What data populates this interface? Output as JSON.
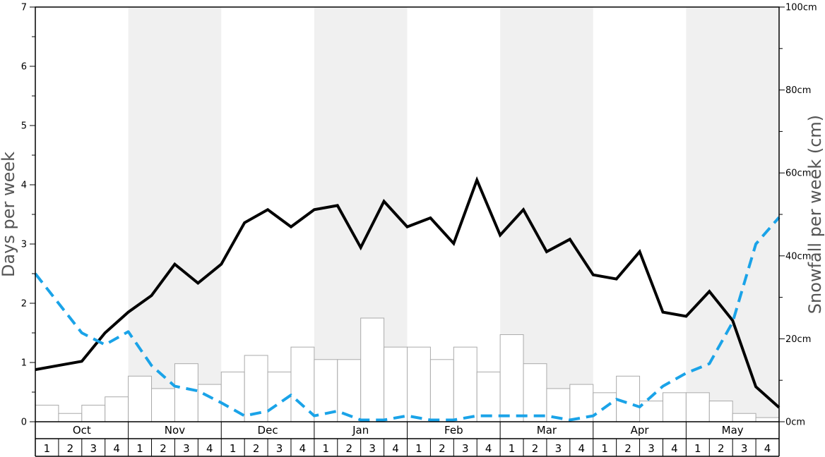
{
  "chart_data": {
    "type": "bar",
    "y_left": {
      "label": "Days per week",
      "lim": [
        0,
        7
      ],
      "ticks": [
        "0",
        "1",
        "2",
        "3",
        "4",
        "5",
        "6",
        "7"
      ]
    },
    "y_right": {
      "label": "Snowfall per week (cm)",
      "lim": [
        0,
        100
      ],
      "ticks": [
        "0cm",
        "20cm",
        "40cm",
        "60cm",
        "80cm",
        "100cm"
      ]
    },
    "months": [
      "Oct",
      "Nov",
      "Dec",
      "Jan",
      "Feb",
      "Mar",
      "Apr",
      "May"
    ],
    "weeks": [
      "1",
      "2",
      "3",
      "4"
    ],
    "shaded_months": [
      "Nov",
      "Jan",
      "Mar",
      "May"
    ],
    "series": [
      {
        "kind": "bars",
        "axis": "right",
        "color": "#aaaaaa",
        "values": [
          4,
          2,
          4,
          6,
          11,
          8,
          14,
          9,
          12,
          16,
          12,
          18,
          15,
          15,
          25,
          18,
          18,
          15,
          18,
          12,
          21,
          14,
          8,
          9,
          7,
          11,
          5,
          7,
          7,
          5,
          2,
          1
        ]
      },
      {
        "kind": "solid-line",
        "axis": "left",
        "color": "#000000",
        "values": [
          0.88,
          0.95,
          1.02,
          1.5,
          1.85,
          2.13,
          2.66,
          2.34,
          2.66,
          3.36,
          3.58,
          3.29,
          3.58,
          3.65,
          2.94,
          3.72,
          3.29,
          3.44,
          3.01,
          4.08,
          3.15,
          3.58,
          2.87,
          3.08,
          2.48,
          2.41,
          2.87,
          1.85,
          1.78,
          2.2,
          1.71,
          0.59,
          0.24
        ]
      },
      {
        "kind": "dashed-line",
        "axis": "left",
        "color": "#1aa3e8",
        "values": [
          2.5,
          2.0,
          1.5,
          1.3,
          1.52,
          0.95,
          0.6,
          0.52,
          0.32,
          0.1,
          0.18,
          0.45,
          0.1,
          0.18,
          0.03,
          0.03,
          0.1,
          0.03,
          0.03,
          0.1,
          0.1,
          0.1,
          0.1,
          0.03,
          0.1,
          0.38,
          0.25,
          0.6,
          0.82,
          0.98,
          1.68,
          3.0,
          3.45
        ]
      }
    ]
  }
}
